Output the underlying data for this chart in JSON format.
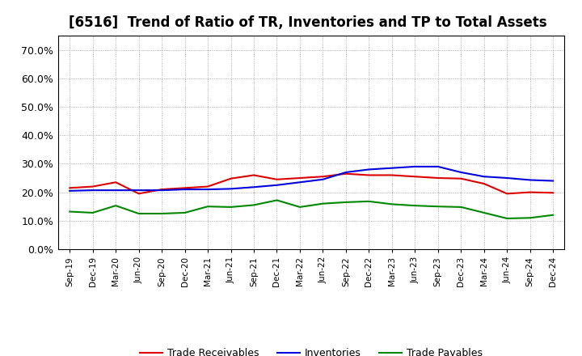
{
  "title": "[6516]  Trend of Ratio of TR, Inventories and TP to Total Assets",
  "labels": [
    "Sep-19",
    "Dec-19",
    "Mar-20",
    "Jun-20",
    "Sep-20",
    "Dec-20",
    "Mar-21",
    "Jun-21",
    "Sep-21",
    "Dec-21",
    "Mar-22",
    "Jun-22",
    "Sep-22",
    "Dec-22",
    "Mar-23",
    "Jun-23",
    "Sep-23",
    "Dec-23",
    "Mar-24",
    "Jun-24",
    "Sep-24",
    "Dec-24"
  ],
  "trade_receivables": [
    0.215,
    0.22,
    0.235,
    0.195,
    0.21,
    0.215,
    0.22,
    0.248,
    0.26,
    0.245,
    0.25,
    0.255,
    0.265,
    0.26,
    0.26,
    0.255,
    0.25,
    0.248,
    0.23,
    0.195,
    0.2,
    0.198
  ],
  "inventories": [
    0.205,
    0.207,
    0.207,
    0.207,
    0.207,
    0.21,
    0.21,
    0.212,
    0.218,
    0.225,
    0.235,
    0.245,
    0.27,
    0.28,
    0.285,
    0.29,
    0.29,
    0.27,
    0.255,
    0.25,
    0.243,
    0.24
  ],
  "trade_payables": [
    0.132,
    0.128,
    0.153,
    0.125,
    0.125,
    0.128,
    0.15,
    0.148,
    0.155,
    0.172,
    0.148,
    0.16,
    0.165,
    0.168,
    0.158,
    0.153,
    0.15,
    0.148,
    0.128,
    0.108,
    0.11,
    0.12
  ],
  "tr_color": "#dd0000",
  "inv_color": "#0000dd",
  "tp_color": "#008800",
  "background_color": "#ffffff",
  "grid_color": "#999999",
  "ylim": [
    0.0,
    0.75
  ],
  "yticks": [
    0.0,
    0.1,
    0.2,
    0.3,
    0.4,
    0.5,
    0.6,
    0.7
  ],
  "title_fontsize": 12,
  "legend_fontsize": 9,
  "linewidth": 1.5
}
